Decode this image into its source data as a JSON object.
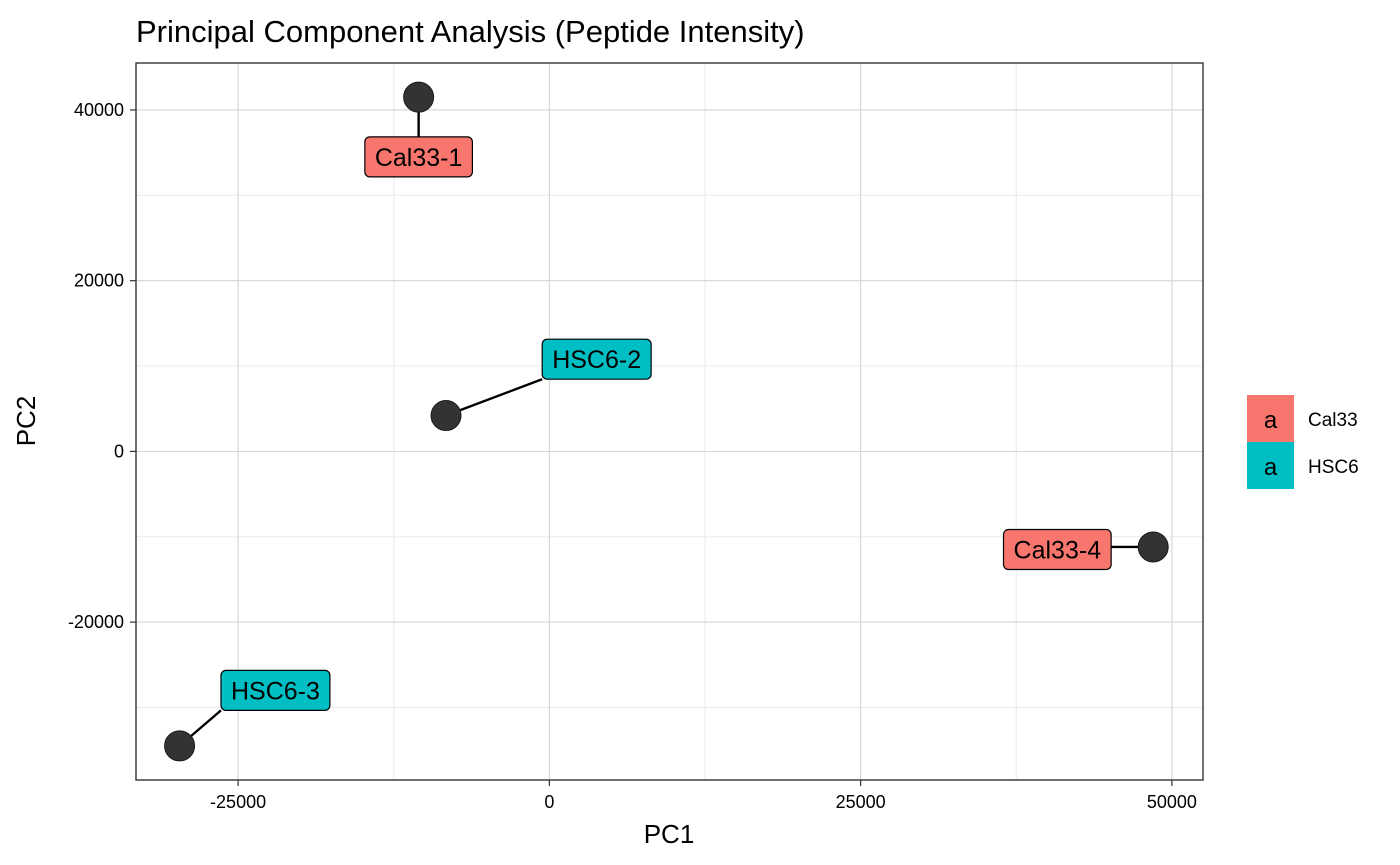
{
  "chart_data": {
    "type": "scatter",
    "title": "Principal Component Analysis (Peptide Intensity)",
    "xlabel": "PC1",
    "ylabel": "PC2",
    "xlim": [
      -33200,
      52500
    ],
    "ylim": [
      -38500,
      45500
    ],
    "xticks": [
      -25000,
      0,
      25000,
      50000
    ],
    "yticks": [
      -20000,
      0,
      20000,
      40000
    ],
    "xtick_labels": [
      "-25000",
      "0",
      "25000",
      "50000"
    ],
    "ytick_labels": [
      "-20000",
      "0",
      "20000",
      "40000"
    ],
    "grid": true,
    "legend_position": "right",
    "groups": [
      {
        "name": "Cal33",
        "color": "#F8766D",
        "key_text": "a"
      },
      {
        "name": "HSC6",
        "color": "#00BFC4",
        "key_text": "a"
      }
    ],
    "points": [
      {
        "label": "Cal33-1",
        "group": "Cal33",
        "x": -10500,
        "y": 41500,
        "label_x": -10500,
        "label_y": 34500
      },
      {
        "label": "HSC6-2",
        "group": "HSC6",
        "x": -8300,
        "y": 4200,
        "label_x": 3800,
        "label_y": 10800
      },
      {
        "label": "Cal33-4",
        "group": "Cal33",
        "x": 48500,
        "y": -11200,
        "label_x": 40800,
        "label_y": -11500
      },
      {
        "label": "HSC6-3",
        "group": "HSC6",
        "x": -29700,
        "y": -34500,
        "label_x": -22000,
        "label_y": -28000
      }
    ],
    "point_color": "#333333"
  }
}
